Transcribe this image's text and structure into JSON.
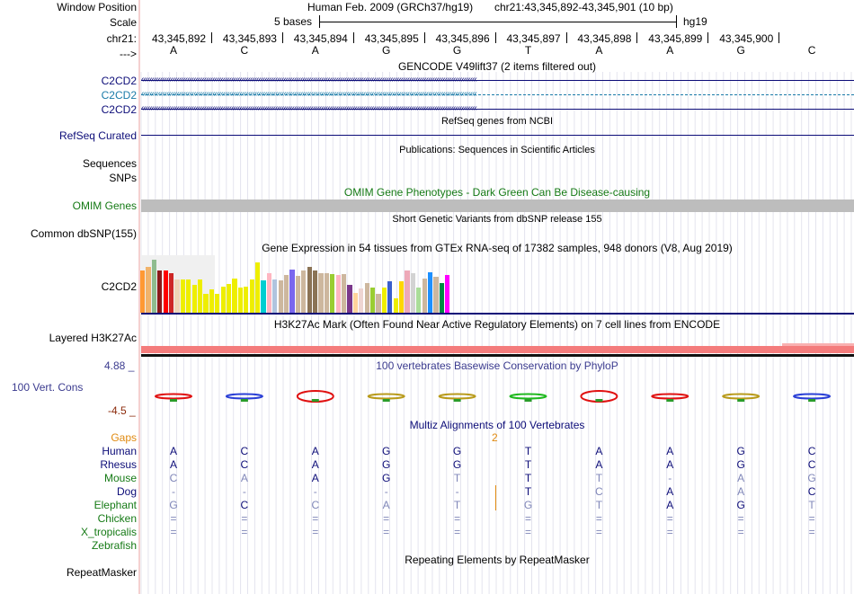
{
  "position": {
    "window_position_label": "Window Position",
    "scale_label": "Scale",
    "chrom_label": "chr21:",
    "strand_label": "--->",
    "assembly": "Human Feb. 2009 (GRCh37/hg19)",
    "range": "chr21:43,345,892-43,345,901 (10 bp)",
    "scale_text": "5 bases",
    "scale_db": "hg19",
    "coordinates": [
      "43,345,892",
      "43,345,893",
      "43,345,894",
      "43,345,895",
      "43,345,896",
      "43,345,897",
      "43,345,898",
      "43,345,899",
      "43,345,900"
    ],
    "bases": [
      "A",
      "C",
      "A",
      "G",
      "G",
      "T",
      "A",
      "A",
      "G",
      "C"
    ]
  },
  "gencode": {
    "title": "GENCODE V49lift37 (2 items filtered out)",
    "genes": [
      "C2CD2",
      "C2CD2",
      "C2CD2"
    ],
    "colors": [
      "#0c0c78",
      "#1a7ba8",
      "#0c0c78"
    ]
  },
  "refseq": {
    "title": "RefSeq genes from NCBI",
    "label": "RefSeq Curated"
  },
  "publications": {
    "title": "Publications: Sequences in Scientific Articles",
    "label_line1": "Sequences",
    "label_line2": "SNPs"
  },
  "omim": {
    "title": "OMIM Gene Phenotypes - Dark Green Can Be Disease-causing",
    "label": "OMIM Genes"
  },
  "dbsnp": {
    "title": "Short Genetic Variants from dbSNP release 155",
    "label": "Common dbSNP(155)"
  },
  "gtex": {
    "title": "Gene Expression in 54 tissues from GTEx RNA-seq of 17382 samples, 948 donors (V8, Aug 2019)",
    "label": "C2CD2",
    "tissue_levels": [
      0.73,
      0.8,
      0.92,
      0.73,
      0.73,
      0.69,
      0.58,
      0.58,
      0.58,
      0.48,
      0.58,
      0.33,
      0.4,
      0.33,
      0.46,
      0.5,
      0.6,
      0.43,
      0.46,
      0.58,
      0.87,
      0.56,
      0.69,
      0.58,
      0.56,
      0.65,
      0.75,
      0.64,
      0.73,
      0.79,
      0.73,
      0.69,
      0.69,
      0.67,
      0.65,
      0.67,
      0.48,
      0.35,
      0.42,
      0.52,
      0.44,
      0.33,
      0.44,
      0.54,
      0.25,
      0.54,
      0.73,
      0.69,
      0.44,
      0.6,
      0.71,
      0.62,
      0.52,
      0.65
    ],
    "tissue_colors": [
      "#ff9933",
      "#f1b36b",
      "#8fbc8f",
      "#8b1a1a",
      "#ff0000",
      "#cd2626",
      "#eed5b7",
      "#eeee00",
      "#eeee00",
      "#eeee00",
      "#eeee00",
      "#eeee00",
      "#eeee00",
      "#eeee00",
      "#eeee00",
      "#eeee00",
      "#eeee00",
      "#eeee00",
      "#eeee00",
      "#eeee00",
      "#eeee00",
      "#00ced1",
      "#ffb6c1",
      "#b0c4de",
      "#cdb79e",
      "#cdb79e",
      "#7a67ee",
      "#cdb79e",
      "#cdb79e",
      "#8b7355",
      "#8b7355",
      "#cdb79e",
      "#cdb79e",
      "#9acd32",
      "#ffb6c1",
      "#cdb79e",
      "#7a378b",
      "#ffd39b",
      "#eed5d2",
      "#cdb79e",
      "#9acd32",
      "#cdb79e",
      "#eeee00",
      "#3a5fcd",
      "#eeee00",
      "#ffd700",
      "#eea9b8",
      "#d3d3d3",
      "#aadd99",
      "#cdb79e",
      "#1e90ff",
      "#cdb79e",
      "#008b45",
      "#ff00ff"
    ]
  },
  "h3k27ac": {
    "title": "H3K27Ac Mark (Often Found Near Active Regulatory Elements) on 7 cell lines from ENCODE",
    "label": "Layered H3K27Ac"
  },
  "conservation": {
    "title": "100 vertebrates Basewise Conservation by PhyloP",
    "label": "100 Vert. Cons",
    "max": "4.88 _",
    "min": "-4.5 _",
    "logo_bases": [
      "A",
      "C",
      "A",
      "G",
      "G",
      "T",
      "A",
      "A",
      "G",
      "C"
    ]
  },
  "multiz": {
    "title": "Multiz Alignments of 100 Vertebrates",
    "gaps_label": "Gaps",
    "gap_count": "2",
    "species": [
      {
        "name": "Human",
        "color": "#0c0c78",
        "bases": [
          "A",
          "C",
          "A",
          "G",
          "G",
          "T",
          "A",
          "A",
          "G",
          "C"
        ]
      },
      {
        "name": "Rhesus",
        "color": "#0c0c78",
        "bases": [
          "A",
          "C",
          "A",
          "G",
          "G",
          "T",
          "A",
          "A",
          "G",
          "C"
        ]
      },
      {
        "name": "Mouse",
        "color": "#157a15",
        "bases": [
          "C",
          "A",
          "A",
          "G",
          "T",
          "T",
          "T",
          "-",
          "A",
          "G"
        ]
      },
      {
        "name": "Dog",
        "color": "#0c0c78",
        "bases": [
          "-",
          "-",
          "-",
          "-",
          "-",
          "T",
          "C",
          "A",
          "A",
          "C"
        ]
      },
      {
        "name": "Elephant",
        "color": "#157a15",
        "bases": [
          "G",
          "C",
          "C",
          "A",
          "T",
          "G",
          "T",
          "A",
          "G",
          "T"
        ]
      },
      {
        "name": "Chicken",
        "color": "#157a15",
        "bases": [
          "=",
          "=",
          "=",
          "=",
          "=",
          "=",
          "=",
          "=",
          "=",
          "="
        ]
      },
      {
        "name": "X_tropicalis",
        "color": "#157a15",
        "bases": [
          "=",
          "=",
          "=",
          "=",
          "=",
          "=",
          "=",
          "=",
          "=",
          "="
        ]
      },
      {
        "name": "Zebrafish",
        "color": "#157a15",
        "bases": [
          "",
          "",
          "",
          "",
          "",
          "",
          "",
          "",
          "",
          ""
        ]
      }
    ]
  },
  "repeatmasker": {
    "title": "Repeating Elements by RepeatMasker",
    "label": "RepeatMasker"
  },
  "colors": {
    "navy": "#0c0c78",
    "green": "#157a15",
    "orange": "#e08a10",
    "phylop": "#3b3b8f",
    "phylop_min": "#8b2a0a",
    "omim_bar": "#bdbdbd",
    "h3k27ac": "#f47c7c",
    "grid": "#dcdce8"
  }
}
